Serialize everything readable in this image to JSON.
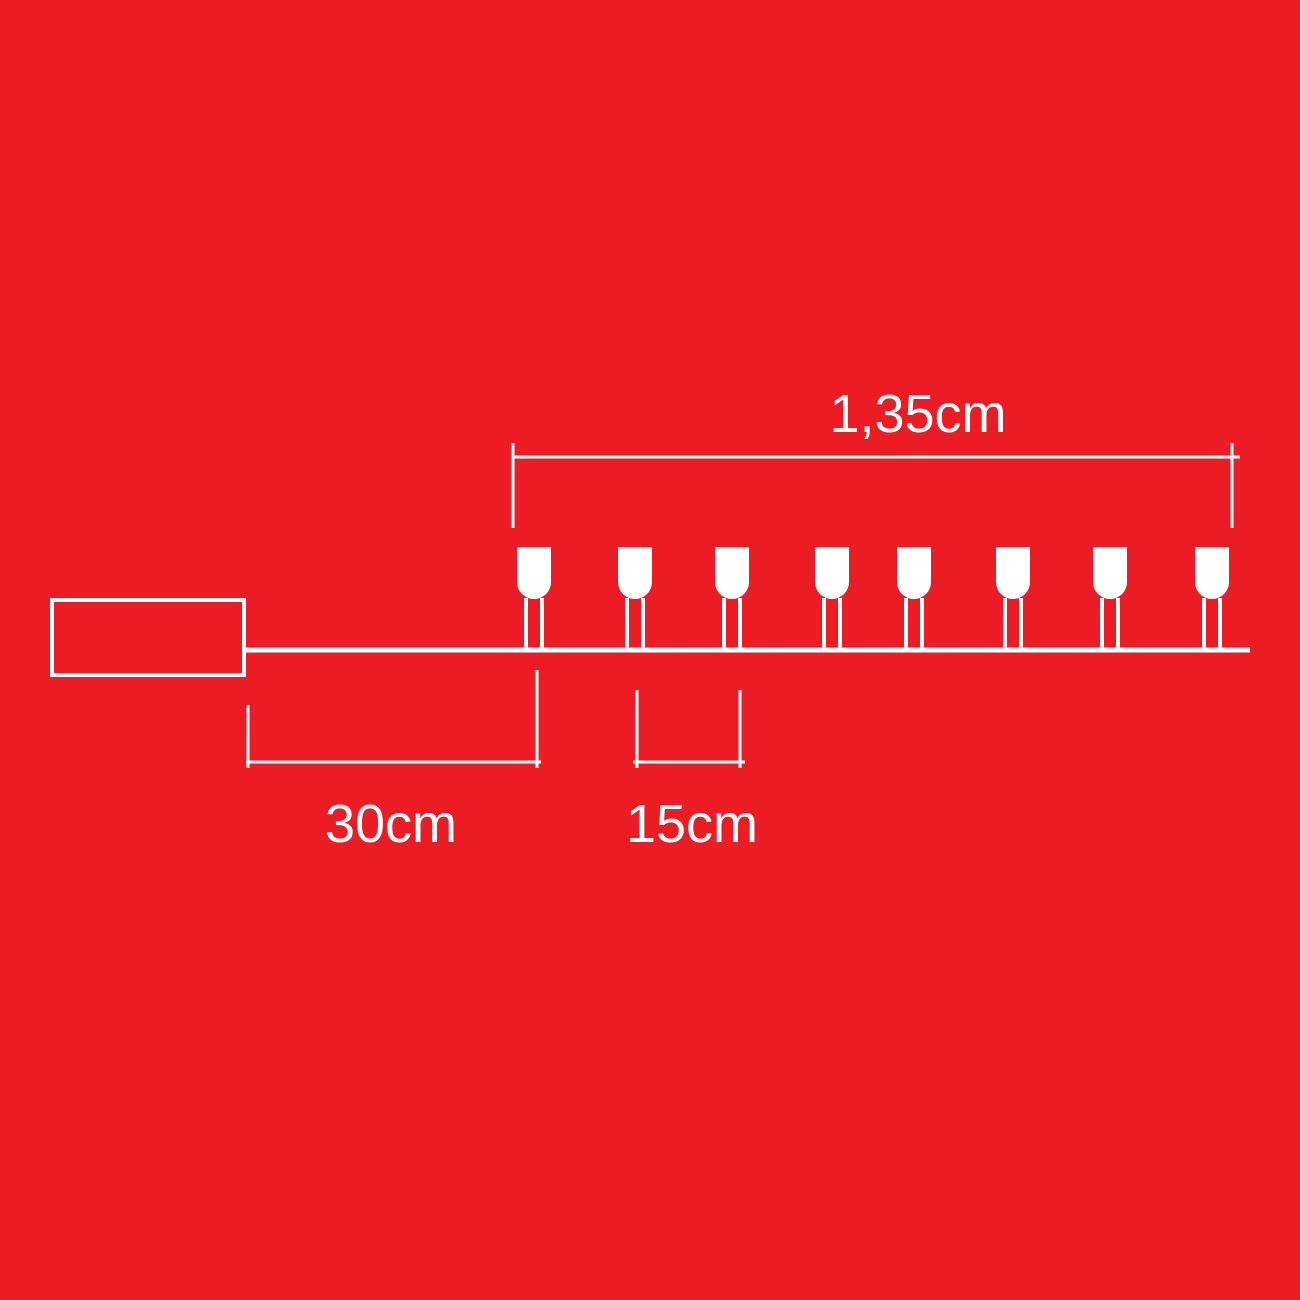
{
  "colors": {
    "background": "#EC1C24",
    "line": "#FFFFFF"
  },
  "diagram": {
    "bulb_count": 8,
    "lit_length_label": "1,35cm",
    "lead_length_label": "30cm",
    "spacing_label": "15cm"
  }
}
